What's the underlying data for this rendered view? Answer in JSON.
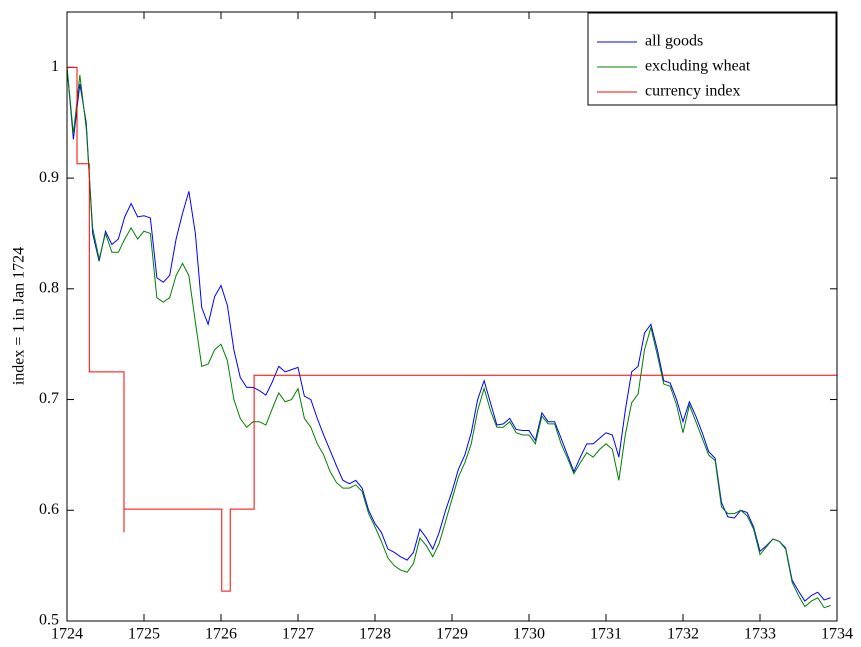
{
  "chart_data": {
    "type": "line",
    "ylabel": "index = 1 in Jan 1724",
    "xlim": [
      1724,
      1734
    ],
    "ylim": [
      0.5,
      1.05
    ],
    "xticks": [
      1724,
      1725,
      1726,
      1727,
      1728,
      1729,
      1730,
      1731,
      1732,
      1733,
      1734
    ],
    "yticks": [
      0.5,
      0.6,
      0.7,
      0.8,
      0.9,
      1
    ],
    "grid": false,
    "legend": "top-right",
    "x": [
      1724,
      1724.083,
      1724.167,
      1724.25,
      1724.333,
      1724.417,
      1724.5,
      1724.583,
      1724.667,
      1724.75,
      1724.833,
      1724.917,
      1725,
      1725.083,
      1725.167,
      1725.25,
      1725.333,
      1725.417,
      1725.5,
      1725.583,
      1725.667,
      1725.75,
      1725.833,
      1725.917,
      1726,
      1726.083,
      1726.167,
      1726.25,
      1726.333,
      1726.417,
      1726.5,
      1726.583,
      1726.667,
      1726.75,
      1726.833,
      1726.917,
      1727,
      1727.083,
      1727.167,
      1727.25,
      1727.333,
      1727.417,
      1727.5,
      1727.583,
      1727.667,
      1727.75,
      1727.833,
      1727.917,
      1728,
      1728.083,
      1728.167,
      1728.25,
      1728.333,
      1728.417,
      1728.5,
      1728.583,
      1728.667,
      1728.75,
      1728.833,
      1728.917,
      1729,
      1729.083,
      1729.167,
      1729.25,
      1729.333,
      1729.417,
      1729.5,
      1729.583,
      1729.667,
      1729.75,
      1729.833,
      1729.917,
      1730,
      1730.083,
      1730.167,
      1730.25,
      1730.333,
      1730.417,
      1730.5,
      1730.583,
      1730.667,
      1730.75,
      1730.833,
      1730.917,
      1731,
      1731.083,
      1731.167,
      1731.25,
      1731.333,
      1731.417,
      1731.5,
      1731.583,
      1731.667,
      1731.75,
      1731.833,
      1731.917,
      1732,
      1732.083,
      1732.167,
      1732.25,
      1732.333,
      1732.417,
      1732.5,
      1732.583,
      1732.667,
      1732.75,
      1732.833,
      1732.917,
      1733,
      1733.083,
      1733.167,
      1733.25,
      1733.333,
      1733.417,
      1733.5,
      1733.583,
      1733.667,
      1733.75,
      1733.833,
      1733.917
    ],
    "series": [
      {
        "name": "all goods",
        "color": "#0000ff",
        "values": [
          1.0,
          0.935,
          0.985,
          0.95,
          0.85,
          0.825,
          0.852,
          0.84,
          0.845,
          0.865,
          0.877,
          0.865,
          0.866,
          0.864,
          0.81,
          0.806,
          0.812,
          0.845,
          0.868,
          0.888,
          0.85,
          0.783,
          0.768,
          0.793,
          0.803,
          0.785,
          0.745,
          0.72,
          0.711,
          0.711,
          0.708,
          0.704,
          0.716,
          0.73,
          0.725,
          0.727,
          0.729,
          0.703,
          0.7,
          0.683,
          0.668,
          0.654,
          0.64,
          0.627,
          0.624,
          0.627,
          0.62,
          0.6,
          0.588,
          0.58,
          0.565,
          0.562,
          0.558,
          0.555,
          0.562,
          0.583,
          0.575,
          0.565,
          0.58,
          0.6,
          0.617,
          0.637,
          0.65,
          0.67,
          0.7,
          0.717,
          0.697,
          0.677,
          0.678,
          0.683,
          0.673,
          0.672,
          0.672,
          0.663,
          0.688,
          0.68,
          0.68,
          0.665,
          0.65,
          0.635,
          0.648,
          0.66,
          0.66,
          0.665,
          0.67,
          0.668,
          0.648,
          0.69,
          0.725,
          0.73,
          0.76,
          0.768,
          0.745,
          0.717,
          0.715,
          0.7,
          0.68,
          0.698,
          0.685,
          0.67,
          0.653,
          0.647,
          0.607,
          0.594,
          0.593,
          0.6,
          0.598,
          0.585,
          0.563,
          0.568,
          0.574,
          0.572,
          0.566,
          0.537,
          0.527,
          0.518,
          0.523,
          0.526,
          0.519,
          0.521
        ]
      },
      {
        "name": "excluding wheat",
        "color": "#008000",
        "values": [
          1.0,
          0.94,
          0.993,
          0.945,
          0.855,
          0.827,
          0.85,
          0.833,
          0.833,
          0.845,
          0.855,
          0.845,
          0.852,
          0.85,
          0.792,
          0.788,
          0.792,
          0.812,
          0.823,
          0.812,
          0.77,
          0.73,
          0.732,
          0.745,
          0.75,
          0.735,
          0.7,
          0.683,
          0.675,
          0.68,
          0.68,
          0.677,
          0.692,
          0.706,
          0.698,
          0.7,
          0.71,
          0.683,
          0.675,
          0.66,
          0.65,
          0.635,
          0.625,
          0.62,
          0.62,
          0.623,
          0.617,
          0.597,
          0.585,
          0.572,
          0.557,
          0.55,
          0.546,
          0.544,
          0.552,
          0.575,
          0.568,
          0.558,
          0.57,
          0.59,
          0.61,
          0.63,
          0.643,
          0.66,
          0.69,
          0.71,
          0.69,
          0.675,
          0.675,
          0.68,
          0.67,
          0.668,
          0.668,
          0.66,
          0.685,
          0.678,
          0.678,
          0.66,
          0.647,
          0.633,
          0.643,
          0.652,
          0.648,
          0.655,
          0.66,
          0.655,
          0.627,
          0.668,
          0.697,
          0.705,
          0.745,
          0.765,
          0.74,
          0.714,
          0.712,
          0.695,
          0.67,
          0.695,
          0.68,
          0.665,
          0.65,
          0.645,
          0.603,
          0.597,
          0.597,
          0.6,
          0.595,
          0.583,
          0.56,
          0.567,
          0.574,
          0.572,
          0.565,
          0.535,
          0.523,
          0.513,
          0.518,
          0.521,
          0.512,
          0.514
        ]
      },
      {
        "name": "currency index",
        "color": "#ff0000",
        "x": [
          1724,
          1724.13,
          1724.13,
          1724.29,
          1724.29,
          1724.74,
          1724.74,
          1724.74,
          1726.01,
          1726.01,
          1726.12,
          1726.12,
          1726.43,
          1726.43,
          1734
        ],
        "values": [
          1.0,
          1.0,
          0.913,
          0.913,
          0.725,
          0.725,
          0.58,
          0.601,
          0.601,
          0.527,
          0.527,
          0.601,
          0.601,
          0.722,
          0.722
        ]
      }
    ]
  }
}
